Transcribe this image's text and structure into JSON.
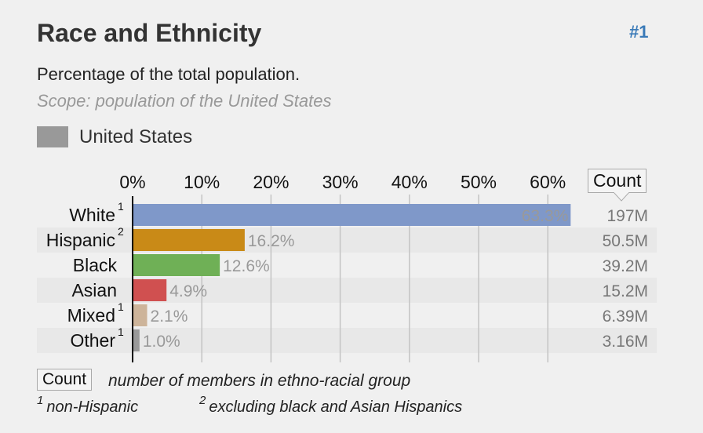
{
  "header": {
    "title": "Race and Ethnicity",
    "rank": "#1",
    "subtitle": "Percentage of the total population.",
    "scope": "Scope: population of the United States"
  },
  "legend": {
    "label": "United States",
    "color": "#999999"
  },
  "count_header": "Count",
  "chart_data": {
    "type": "bar",
    "orientation": "horizontal",
    "xlim": [
      0,
      70
    ],
    "ticks": [
      "0%",
      "10%",
      "20%",
      "30%",
      "40%",
      "50%",
      "60%"
    ],
    "grid": true,
    "categories": [
      "White",
      "Hispanic",
      "Black",
      "Asian",
      "Mixed",
      "Other"
    ],
    "superscripts": [
      "1",
      "2",
      "",
      "",
      "1",
      "1"
    ],
    "values": [
      63.3,
      16.2,
      12.6,
      4.9,
      2.1,
      1.0
    ],
    "value_labels": [
      "63.3%",
      "16.2%",
      "12.6%",
      "4.9%",
      "2.1%",
      "1.0%"
    ],
    "counts": [
      "197M",
      "50.5M",
      "39.2M",
      "15.2M",
      "6.39M",
      "3.16M"
    ],
    "colors": [
      "#7f98c9",
      "#c98a17",
      "#6fb056",
      "#d05050",
      "#cdb49a",
      "#999999"
    ],
    "series_name": "United States"
  },
  "footer": {
    "count_label": "Count",
    "count_desc": "number of members in ethno-racial group",
    "notes": [
      {
        "num": "1",
        "text": "non-Hispanic"
      },
      {
        "num": "2",
        "text": "excluding black and Asian Hispanics"
      }
    ]
  }
}
